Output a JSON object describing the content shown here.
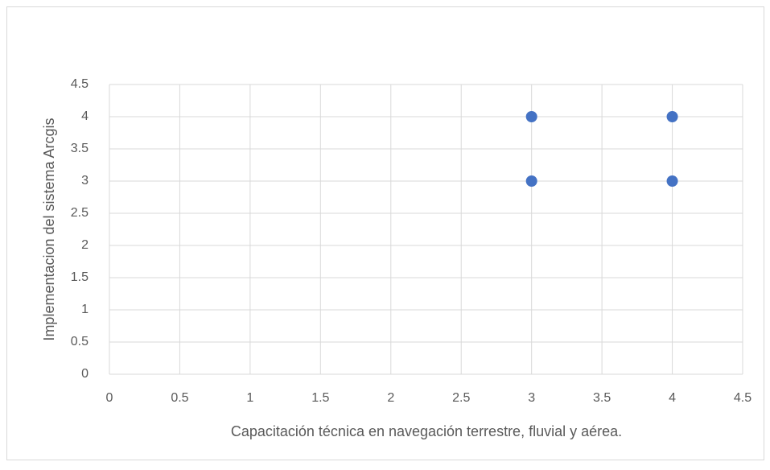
{
  "chart_data": {
    "type": "scatter",
    "x_label": "Capacitación técnica en navegación terrestre, fluvial y aérea.",
    "y_label": "Implementacion del sistema Arcgis",
    "x": [
      3,
      3,
      4,
      4
    ],
    "values": [
      4,
      3,
      4,
      3
    ],
    "color": "#4472c4",
    "xlim": [
      0,
      4.5
    ],
    "xticks": [
      0,
      0.5,
      1,
      1.5,
      2,
      2.5,
      3,
      3.5,
      4,
      4.5
    ],
    "ylim": [
      0,
      4.5
    ],
    "yticks": [
      0,
      0.5,
      1,
      1.5,
      2,
      2.5,
      3,
      3.5,
      4,
      4.5
    ],
    "grid": true
  }
}
